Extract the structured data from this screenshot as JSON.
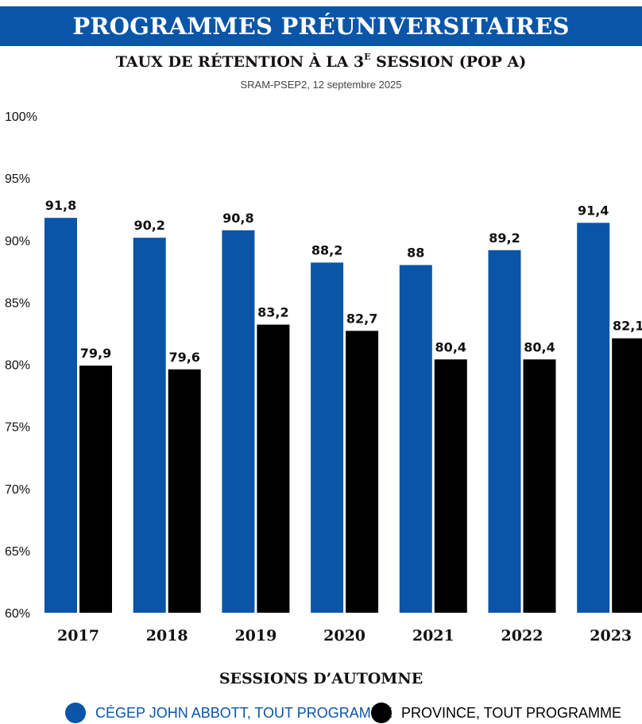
{
  "banner": {
    "title": "PROGRAMMES PRÉUNIVERSITAIRES",
    "color": "#0a55a7"
  },
  "chart_data": {
    "type": "bar",
    "title_main": "TAUX DE RÉTENTION À LA 3",
    "title_sup": "E",
    "title_end": " SESSION (POP A)",
    "subtitle": "SRAM-PSEP2, 12 septembre 2025",
    "xlabel": "SESSIONS D’AUTOMNE",
    "ylabel": "",
    "categories": [
      "2017",
      "2018",
      "2019",
      "2020",
      "2021",
      "2022",
      "2023"
    ],
    "series": [
      {
        "name": "CÉGEP JOHN ABBOTT, TOUT PROGRAMME",
        "color": "#0a55a7",
        "values": [
          91.8,
          90.2,
          90.8,
          88.2,
          88,
          89.2,
          91.4
        ],
        "labels": [
          "91,8",
          "90,2",
          "90,8",
          "88,2",
          "88",
          "89,2",
          "91,4"
        ]
      },
      {
        "name": "PROVINCE, TOUT PROGRAMME",
        "color": "#000000",
        "values": [
          79.9,
          79.6,
          83.2,
          82.7,
          80.4,
          80.4,
          82.1
        ],
        "labels": [
          "79,9",
          "79,6",
          "83,2",
          "82,7",
          "80,4",
          "80,4",
          "82,1"
        ]
      }
    ],
    "ylim": [
      60,
      100
    ],
    "yticks": [
      60,
      65,
      70,
      75,
      80,
      85,
      90,
      95,
      100
    ],
    "ytick_labels": [
      "60%",
      "65%",
      "70%",
      "75%",
      "80%",
      "85%",
      "90%",
      "95%",
      "100%"
    ],
    "grid": false,
    "legend_position": "bottom"
  }
}
